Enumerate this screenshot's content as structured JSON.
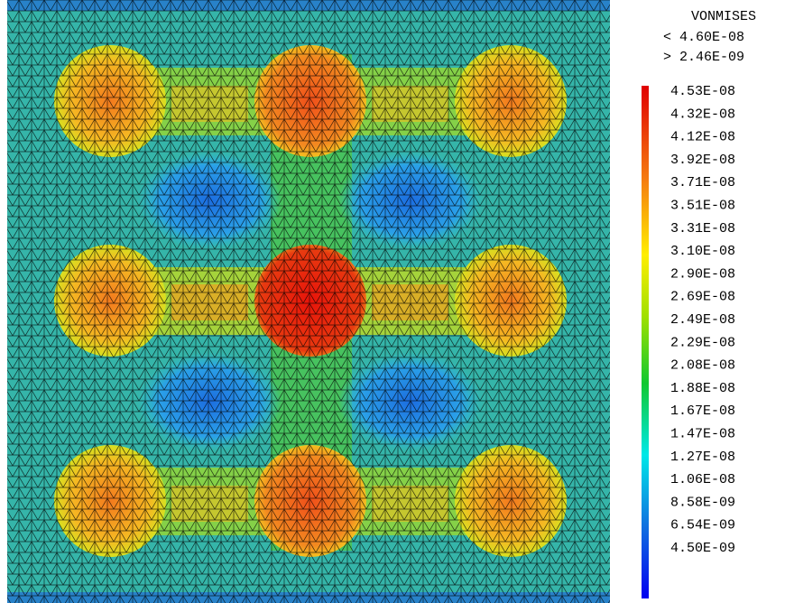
{
  "legend": {
    "title": "VONMISES",
    "max": "< 4.60E-08",
    "min": "> 2.46E-09",
    "labels": [
      "4.53E-08",
      "4.32E-08",
      "4.12E-08",
      "3.92E-08",
      "3.71E-08",
      "3.51E-08",
      "3.31E-08",
      "3.10E-08",
      "2.90E-08",
      "2.69E-08",
      "2.49E-08",
      "2.29E-08",
      "2.08E-08",
      "1.88E-08",
      "1.67E-08",
      "1.47E-08",
      "1.27E-08",
      "1.06E-08",
      "8.58E-09",
      "6.54E-09",
      "4.50E-09"
    ]
  }
}
